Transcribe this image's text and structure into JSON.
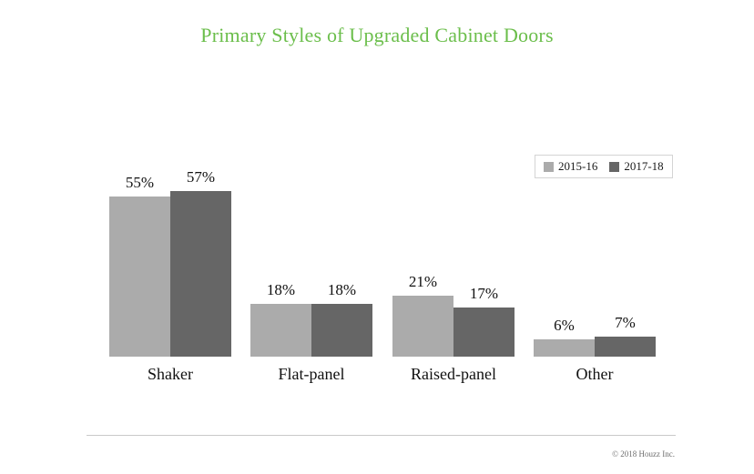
{
  "title": "Primary Styles of Upgraded Cabinet Doors",
  "legend": {
    "items": [
      {
        "label": "2015-16",
        "color": "#ababab"
      },
      {
        "label": "2017-18",
        "color": "#666666"
      }
    ]
  },
  "footer": {
    "copyright": "© 2018 Houzz Inc."
  },
  "colors": {
    "title_green": "#6bbe4b",
    "bar_light": "#ababab",
    "bar_dark": "#666666",
    "divider": "#c9c9c9",
    "footer_text": "#6e6e6e"
  },
  "chart_data": {
    "type": "bar",
    "title": "Primary Styles of Upgraded Cabinet Doors",
    "categories": [
      "Shaker",
      "Flat-panel",
      "Raised-panel",
      "Other"
    ],
    "series": [
      {
        "name": "2015-16",
        "values": [
          55,
          18,
          21,
          6
        ],
        "color": "#ababab"
      },
      {
        "name": "2017-18",
        "values": [
          57,
          18,
          17,
          7
        ],
        "color": "#666666"
      }
    ],
    "value_labels": [
      [
        "55%",
        "57%"
      ],
      [
        "18%",
        "18%"
      ],
      [
        "21%",
        "17%"
      ],
      [
        "6%",
        "7%"
      ]
    ],
    "unit": "%",
    "xlabel": "",
    "ylabel": "",
    "ylim": [
      0,
      60
    ],
    "grid": false,
    "axes_visible": false,
    "legend_position": "top-right",
    "footnote": "© 2018 Houzz Inc."
  }
}
